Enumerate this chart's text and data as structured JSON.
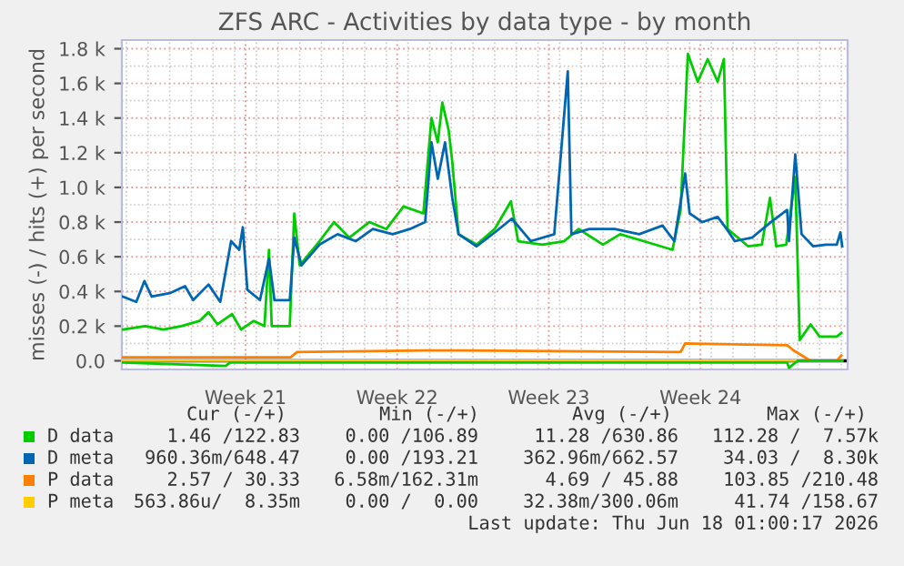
{
  "chart_data": {
    "type": "line",
    "title": "ZFS ARC - Activities by data type - by month",
    "ylabel": "misses (-) / hits (+) per second",
    "xlim": [
      "2026-05-15T19:00",
      "2026-06-18T07:00"
    ],
    "ylim": [
      -50,
      1850
    ],
    "xticks": [
      {
        "value": "2026-05-21T12:00",
        "label": "Week 21"
      },
      {
        "value": "2026-05-28T12:00",
        "label": "Week 22"
      },
      {
        "value": "2026-06-04T12:00",
        "label": "Week 23"
      },
      {
        "value": "2026-06-11T12:00",
        "label": "Week 24"
      }
    ],
    "yticks": [
      {
        "value": 0,
        "label": "0.0"
      },
      {
        "value": 200,
        "label": "0.2 k"
      },
      {
        "value": 400,
        "label": "0.4 k"
      },
      {
        "value": 600,
        "label": "0.6 k"
      },
      {
        "value": 800,
        "label": "0.8 k"
      },
      {
        "value": 1000,
        "label": "1.0 k"
      },
      {
        "value": 1200,
        "label": "1.2 k"
      },
      {
        "value": 1400,
        "label": "1.4 k"
      },
      {
        "value": 1600,
        "label": "1.6 k"
      },
      {
        "value": 1800,
        "label": "1.8 k"
      }
    ],
    "grid": true,
    "legend": "bottom",
    "marker": "none",
    "line_style": "solid",
    "ref_lines": [
      {
        "axis": "y",
        "value": 0,
        "color": "#000000"
      }
    ],
    "series": [
      {
        "name": "D data",
        "color": "#00cc00",
        "x": [
          "2026-05-15T20:00",
          "2026-05-16T21:00",
          "2026-05-17T17:00",
          "2026-05-18T13:00",
          "2026-05-19T09:00",
          "2026-05-19T19:00",
          "2026-05-20T05:00",
          "2026-05-20T21:00",
          "2026-05-21T07:00",
          "2026-05-21T21:00",
          "2026-05-22T09:00",
          "2026-05-22T14:00",
          "2026-05-22T17:00",
          "2026-05-23T13:00",
          "2026-05-23T18:00",
          "2026-05-24T00:00",
          "2026-05-24T22:00",
          "2026-05-25T14:00",
          "2026-05-26T07:00",
          "2026-05-27T05:00",
          "2026-05-28T00:00",
          "2026-05-28T19:00",
          "2026-05-29T17:00",
          "2026-05-30T02:00",
          "2026-05-30T09:00",
          "2026-05-30T14:00",
          "2026-05-30T21:00",
          "2026-05-31T01:00",
          "2026-05-31T08:00",
          "2026-06-01T04:00",
          "2026-06-02T00:00",
          "2026-06-02T18:00",
          "2026-06-03T02:00",
          "2026-06-04T05:00",
          "2026-06-05T05:00",
          "2026-06-05T21:00",
          "2026-06-07T00:00",
          "2026-06-07T19:00",
          "2026-06-08T21:00",
          "2026-06-10T05:00",
          "2026-06-10T14:00",
          "2026-06-10T22:00",
          "2026-06-11T09:00",
          "2026-06-11T20:00",
          "2026-06-12T07:00",
          "2026-06-12T14:00",
          "2026-06-12T18:00",
          "2026-06-13T17:00",
          "2026-06-14T08:00",
          "2026-06-14T17:00",
          "2026-06-15T00:00",
          "2026-06-15T11:00",
          "2026-06-15T21:00",
          "2026-06-16T02:00",
          "2026-06-16T14:00",
          "2026-06-17T00:00",
          "2026-06-17T19:00",
          "2026-06-18T00:00"
        ],
        "values": [
          180,
          200,
          180,
          200,
          230,
          280,
          210,
          270,
          180,
          230,
          200,
          640,
          200,
          200,
          850,
          550,
          690,
          800,
          710,
          800,
          760,
          890,
          850,
          1400,
          1260,
          1490,
          1330,
          1150,
          730,
          670,
          760,
          920,
          690,
          670,
          690,
          760,
          670,
          730,
          690,
          640,
          870,
          1770,
          1610,
          1740,
          1610,
          1740,
          760,
          660,
          670,
          940,
          660,
          670,
          1060,
          120,
          210,
          140,
          140,
          160
        ]
      },
      {
        "name": "D meta",
        "color": "#0066b3",
        "x": [
          "2026-05-15T20:00",
          "2026-05-16T11:00",
          "2026-05-16T20:00",
          "2026-05-17T04:00",
          "2026-05-18T00:00",
          "2026-05-18T17:00",
          "2026-05-19T02:00",
          "2026-05-19T19:00",
          "2026-05-20T08:00",
          "2026-05-20T20:00",
          "2026-05-21T05:00",
          "2026-05-21T09:00",
          "2026-05-21T14:00",
          "2026-05-22T04:00",
          "2026-05-22T14:00",
          "2026-05-22T20:00",
          "2026-05-23T13:00",
          "2026-05-23T18:00",
          "2026-05-24T02:00",
          "2026-05-24T22:00",
          "2026-05-25T18:00",
          "2026-05-26T14:00",
          "2026-05-27T09:00",
          "2026-05-28T07:00",
          "2026-05-29T02:00",
          "2026-05-29T19:00",
          "2026-05-30T02:00",
          "2026-05-30T09:00",
          "2026-05-30T17:00",
          "2026-05-31T01:00",
          "2026-05-31T08:00",
          "2026-06-01T04:00",
          "2026-06-02T00:00",
          "2026-06-02T19:00",
          "2026-06-03T16:00",
          "2026-06-04T18:00",
          "2026-06-05T09:00",
          "2026-06-05T13:00",
          "2026-06-06T09:00",
          "2026-06-07T13:00",
          "2026-06-08T16:00",
          "2026-06-09T18:00",
          "2026-06-10T07:00",
          "2026-06-10T19:00",
          "2026-06-11T00:00",
          "2026-06-11T14:00",
          "2026-06-12T07:00",
          "2026-06-12T17:00",
          "2026-06-13T02:00",
          "2026-06-13T21:00",
          "2026-06-14T18:00",
          "2026-06-15T12:00",
          "2026-06-15T14:00",
          "2026-06-15T21:00",
          "2026-06-16T04:00",
          "2026-06-16T17:00",
          "2026-06-17T07:00",
          "2026-06-17T19:00",
          "2026-06-17T23:00",
          "2026-06-18T01:00"
        ],
        "values": [
          370,
          340,
          460,
          370,
          390,
          430,
          350,
          440,
          340,
          690,
          640,
          770,
          410,
          350,
          590,
          350,
          350,
          710,
          550,
          670,
          730,
          690,
          760,
          730,
          760,
          800,
          1260,
          1050,
          1260,
          940,
          730,
          660,
          740,
          820,
          690,
          730,
          1670,
          730,
          760,
          760,
          730,
          780,
          690,
          1080,
          850,
          800,
          830,
          760,
          690,
          710,
          800,
          870,
          690,
          1190,
          730,
          660,
          670,
          670,
          740,
          660
        ]
      },
      {
        "name": "P data",
        "color": "#ff8000",
        "x": [
          "2026-05-15T19:00",
          "2026-05-23T14:00",
          "2026-05-23T21:00",
          "2026-05-29T19:00",
          "2026-05-31T02:00",
          "2026-06-10T14:00",
          "2026-06-10T19:00",
          "2026-06-15T12:00",
          "2026-06-15T19:00",
          "2026-06-16T14:00",
          "2026-06-17T19:00",
          "2026-06-18T00:00"
        ],
        "values": [
          20,
          20,
          50,
          60,
          60,
          50,
          100,
          90,
          60,
          0,
          0,
          30
        ]
      },
      {
        "name": "P meta",
        "color": "#ffcc00",
        "x": [
          "2026-05-15T19:00",
          "2026-06-18T01:00"
        ],
        "values": [
          0,
          0
        ]
      },
      {
        "color": "#00cc00",
        "x": [
          "2026-05-15T19:00",
          "2026-05-20T14:00",
          "2026-05-20T19:00",
          "2026-06-04T19:00",
          "2026-06-15T12:00",
          "2026-06-15T14:00",
          "2026-06-16T00:00",
          "2026-06-18T01:00"
        ],
        "values": [
          -10,
          -30,
          -10,
          -10,
          -10,
          -40,
          0,
          0
        ]
      }
    ],
    "annotations": [
      "Cur (-/+)",
      "Min (-/+)",
      "Avg (-/+)",
      "Max (-/+)",
      "1.46 /122.83",
      "0.00 /106.89",
      "11.28 /630.86",
      "112.28 /  7.57k",
      "960.36m/648.47",
      "0.00 /193.21",
      "362.96m/662.57",
      "34.03 /  8.30k",
      "2.57 / 30.33",
      "6.58m/162.31m",
      "4.69 / 45.88",
      "103.85 /210.48",
      "563.86u/  8.35m",
      "0.00 /  0.00",
      "32.38m/300.06m",
      "41.74 /158.67",
      "Last update: Thu Jun 18 01:00:17 2026"
    ]
  }
}
